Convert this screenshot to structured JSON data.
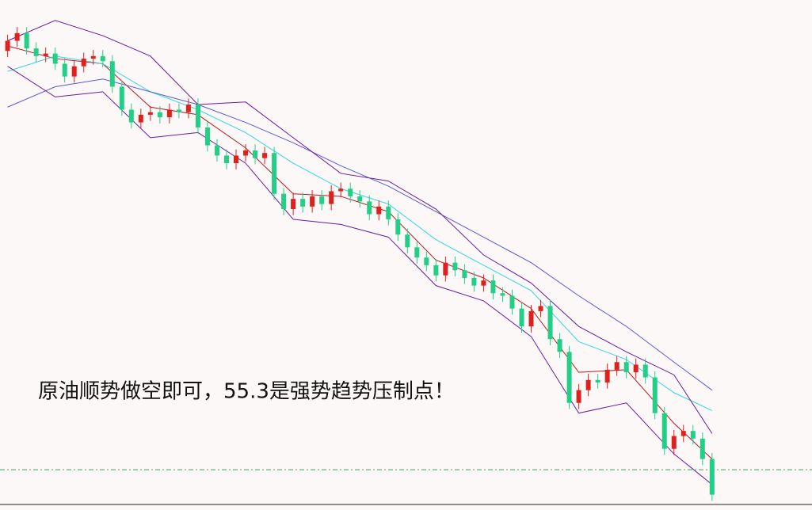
{
  "chart_data": {
    "type": "candlestick",
    "annotation": "原油顺势做空即可，55.3是强势趋势压制点！",
    "xlim": [
      -0.8,
      84.5
    ],
    "ylim": [
      50,
      60
    ],
    "up_color": "#e0201a",
    "down_color": "#22cf86",
    "open": [
      59.0,
      59.2,
      59.35,
      59.05,
      58.9,
      58.95,
      58.75,
      58.5,
      58.7,
      58.85,
      58.9,
      58.8,
      58.3,
      57.85,
      57.6,
      57.75,
      57.8,
      57.7,
      57.85,
      57.8,
      57.95,
      57.5,
      57.15,
      56.95,
      56.8,
      56.95,
      57.05,
      56.9,
      57.0,
      56.2,
      55.9,
      56.1,
      55.95,
      56.15,
      56.0,
      56.25,
      56.3,
      56.15,
      56.05,
      55.8,
      55.95,
      55.7,
      55.4,
      55.15,
      54.95,
      54.8,
      54.6,
      54.85,
      54.7,
      54.55,
      54.4,
      54.5,
      54.25,
      54.2,
      53.95,
      53.6,
      53.9,
      54.0,
      53.35,
      53.1,
      52.1,
      52.35,
      52.55,
      52.5,
      52.75,
      52.9,
      52.7,
      52.85,
      52.6,
      51.9,
      51.2,
      51.45,
      51.55,
      51.4,
      51.0
    ],
    "high": [
      59.32,
      59.47,
      59.47,
      59.17,
      59.07,
      59.07,
      58.87,
      58.82,
      58.97,
      59.02,
      59.02,
      58.92,
      58.42,
      57.97,
      57.87,
      57.92,
      57.92,
      57.97,
      57.97,
      58.07,
      58.07,
      57.62,
      57.27,
      57.07,
      57.07,
      57.17,
      57.17,
      57.12,
      57.12,
      56.32,
      56.22,
      56.22,
      56.27,
      56.27,
      56.37,
      56.42,
      56.42,
      56.27,
      56.17,
      56.07,
      56.07,
      55.82,
      55.52,
      55.27,
      55.07,
      54.92,
      54.97,
      54.97,
      54.82,
      54.67,
      54.62,
      54.62,
      54.37,
      54.32,
      54.07,
      54.02,
      54.12,
      54.12,
      53.47,
      53.22,
      52.47,
      52.67,
      52.67,
      52.87,
      53.02,
      53.02,
      52.97,
      52.97,
      52.72,
      52.02,
      51.57,
      51.67,
      51.67,
      51.52,
      51.12
    ],
    "low": [
      58.88,
      59.08,
      58.93,
      58.78,
      58.78,
      58.63,
      58.38,
      58.38,
      58.58,
      58.73,
      58.68,
      58.18,
      57.73,
      57.48,
      57.48,
      57.63,
      57.58,
      57.58,
      57.68,
      57.68,
      57.38,
      57.03,
      56.83,
      56.68,
      56.68,
      56.83,
      56.78,
      56.78,
      56.08,
      55.78,
      55.78,
      55.83,
      55.83,
      55.88,
      55.88,
      56.13,
      56.03,
      55.93,
      55.68,
      55.68,
      55.58,
      55.28,
      55.03,
      54.83,
      54.68,
      54.48,
      54.48,
      54.58,
      54.43,
      54.28,
      54.28,
      54.13,
      54.08,
      53.83,
      53.48,
      53.48,
      53.78,
      53.23,
      52.98,
      51.98,
      51.98,
      52.23,
      52.38,
      52.38,
      52.63,
      52.58,
      52.58,
      52.48,
      51.78,
      51.08,
      51.08,
      51.33,
      51.28,
      50.88,
      50.18
    ],
    "close": [
      59.2,
      59.35,
      59.05,
      58.9,
      58.95,
      58.75,
      58.5,
      58.7,
      58.85,
      58.9,
      58.8,
      58.3,
      57.85,
      57.6,
      57.75,
      57.8,
      57.7,
      57.85,
      57.8,
      57.95,
      57.5,
      57.15,
      56.95,
      56.8,
      56.95,
      57.05,
      56.9,
      57.0,
      56.2,
      55.9,
      56.1,
      55.95,
      56.15,
      56.0,
      56.25,
      56.3,
      56.15,
      56.05,
      55.8,
      55.95,
      55.7,
      55.4,
      55.15,
      54.95,
      54.8,
      54.6,
      54.85,
      54.7,
      54.55,
      54.4,
      54.5,
      54.25,
      54.2,
      53.95,
      53.6,
      53.9,
      54.0,
      53.35,
      53.1,
      52.1,
      52.35,
      52.55,
      52.5,
      52.75,
      52.9,
      52.7,
      52.85,
      52.6,
      51.9,
      51.2,
      51.45,
      51.55,
      51.4,
      51.0,
      50.3
    ],
    "lines": [
      {
        "color": "#c0141c",
        "x": [
          0,
          5,
          10,
          15,
          20,
          25,
          30,
          35,
          40,
          45,
          50,
          55,
          60,
          65,
          70,
          74
        ],
        "values": [
          59.1,
          58.85,
          58.75,
          57.9,
          57.75,
          57.1,
          56.2,
          56.15,
          55.85,
          54.9,
          54.55,
          53.95,
          52.7,
          52.75,
          51.7,
          51.0
        ]
      },
      {
        "color": "#33d6e0",
        "x": [
          0,
          5,
          10,
          15,
          20,
          25,
          30,
          35,
          40,
          45,
          50,
          55,
          60,
          65,
          70,
          74
        ],
        "values": [
          58.6,
          58.9,
          58.75,
          58.2,
          57.85,
          57.4,
          56.8,
          56.3,
          56.0,
          55.3,
          54.8,
          54.3,
          53.3,
          52.95,
          52.3,
          51.95
        ]
      },
      {
        "color": "#5a5ad6",
        "x": [
          0,
          5,
          10,
          15,
          20,
          25,
          30,
          35,
          40,
          45,
          50,
          55,
          60,
          65,
          70,
          74
        ],
        "values": [
          57.9,
          58.3,
          58.45,
          58.2,
          57.95,
          57.6,
          57.2,
          56.75,
          56.35,
          55.85,
          55.35,
          54.85,
          54.2,
          53.6,
          52.9,
          52.35
        ]
      },
      {
        "color": "#6a1aa0",
        "x": [
          0,
          5,
          10,
          15,
          20,
          25,
          30,
          35,
          40,
          45,
          50,
          55,
          60,
          65,
          70,
          74
        ],
        "values": [
          59.2,
          59.6,
          59.3,
          58.9,
          57.95,
          58.0,
          57.3,
          56.6,
          56.45,
          55.9,
          55.0,
          54.45,
          53.6,
          53.1,
          52.65,
          51.5
        ]
      },
      {
        "color": "#6a1aa0",
        "x": [
          0,
          5,
          10,
          15,
          20,
          25,
          30,
          35,
          40,
          45,
          50,
          55,
          60,
          65,
          70,
          74
        ],
        "values": [
          58.7,
          58.1,
          58.2,
          57.3,
          57.4,
          56.8,
          55.7,
          55.6,
          55.35,
          54.4,
          54.1,
          53.4,
          51.9,
          52.1,
          51.1,
          50.5
        ]
      }
    ],
    "reference_line": {
      "value": 50.79,
      "color": "#2fa84f"
    }
  }
}
